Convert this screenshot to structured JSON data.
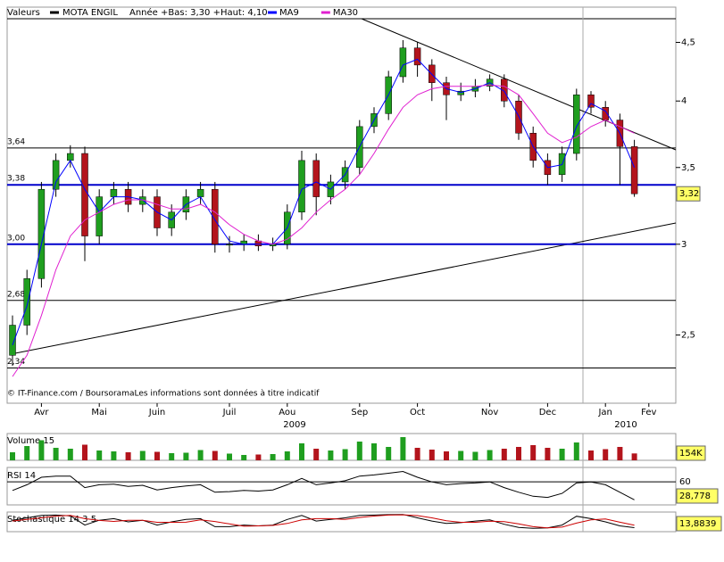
{
  "chart_data": {
    "type": "candlestick",
    "legend_title": "Valeurs",
    "instrument": "MOTA ENGIL",
    "instrument_color": "#000000",
    "range_note": "Année +Bas: 3,30 +Haut: 4,10",
    "source": "© IT-Finance.com / BoursoramaLes informations sont données à titre indicatif",
    "year_labels": [
      "2009",
      "2010"
    ],
    "log_scale": true,
    "up_color": "#1f9e1f",
    "down_color": "#b3141c",
    "categories": [
      null,
      null,
      "Avr",
      null,
      null,
      null,
      "Mai",
      null,
      null,
      null,
      "Juin",
      null,
      null,
      null,
      null,
      "Juil",
      null,
      null,
      null,
      "Aou",
      null,
      null,
      null,
      null,
      "Sep",
      null,
      null,
      null,
      "Oct",
      null,
      null,
      null,
      null,
      "Nov",
      null,
      null,
      null,
      "Dec",
      null,
      null,
      null,
      "Jan",
      null,
      null,
      "Fev"
    ],
    "open": [
      2.4,
      2.55,
      2.8,
      3.35,
      3.55,
      3.6,
      3.05,
      3.3,
      3.35,
      3.25,
      3.3,
      3.1,
      3.2,
      3.3,
      3.35,
      3.0,
      3.0,
      3.02,
      2.99,
      3.0,
      3.2,
      3.55,
      3.3,
      3.4,
      3.5,
      3.8,
      3.9,
      4.2,
      4.45,
      4.3,
      4.15,
      4.05,
      4.08,
      4.12,
      4.18,
      4.0,
      3.75,
      3.55,
      3.45,
      3.6,
      4.05,
      3.95,
      3.85,
      3.65,
      null
    ],
    "high": [
      2.6,
      2.85,
      3.4,
      3.6,
      3.66,
      3.65,
      3.35,
      3.4,
      3.4,
      3.35,
      3.35,
      3.25,
      3.35,
      3.4,
      3.4,
      3.05,
      3.06,
      3.06,
      3.04,
      3.25,
      3.62,
      3.6,
      3.45,
      3.55,
      3.85,
      3.95,
      4.25,
      4.52,
      4.5,
      4.35,
      4.2,
      4.15,
      4.18,
      4.22,
      4.22,
      4.05,
      3.8,
      3.6,
      3.65,
      4.1,
      4.08,
      4.0,
      3.9,
      3.7,
      null
    ],
    "low": [
      2.35,
      2.5,
      2.75,
      3.3,
      3.5,
      2.9,
      3.0,
      3.25,
      3.2,
      3.2,
      3.05,
      3.05,
      3.15,
      3.25,
      2.95,
      2.95,
      2.96,
      2.96,
      2.96,
      2.97,
      3.15,
      3.18,
      3.25,
      3.35,
      3.45,
      3.75,
      3.85,
      4.15,
      4.2,
      4.0,
      3.85,
      4.0,
      4.03,
      4.08,
      3.95,
      3.7,
      3.5,
      3.38,
      3.4,
      3.55,
      3.9,
      3.8,
      3.38,
      3.3,
      null
    ],
    "close": [
      2.55,
      2.8,
      3.35,
      3.55,
      3.6,
      3.05,
      3.3,
      3.35,
      3.25,
      3.3,
      3.1,
      3.2,
      3.3,
      3.35,
      3.0,
      3.0,
      3.02,
      2.99,
      3.0,
      3.2,
      3.55,
      3.3,
      3.4,
      3.5,
      3.8,
      3.9,
      4.2,
      4.45,
      4.3,
      4.15,
      4.05,
      4.08,
      4.12,
      4.18,
      4.0,
      3.75,
      3.55,
      3.45,
      3.6,
      4.05,
      3.95,
      3.85,
      3.65,
      3.32,
      null
    ],
    "series": [
      {
        "name": "MA9",
        "color": "#0000ff",
        "values": [
          2.45,
          2.65,
          3.0,
          3.4,
          3.55,
          3.35,
          3.2,
          3.3,
          3.3,
          3.28,
          3.2,
          3.15,
          3.25,
          3.3,
          3.15,
          3.02,
          3.0,
          3.0,
          3.0,
          3.1,
          3.35,
          3.4,
          3.35,
          3.45,
          3.65,
          3.85,
          4.05,
          4.3,
          4.35,
          4.22,
          4.1,
          4.07,
          4.1,
          4.15,
          4.08,
          3.88,
          3.65,
          3.5,
          3.52,
          3.8,
          3.98,
          3.92,
          3.75,
          3.5,
          null
        ]
      },
      {
        "name": "MA30",
        "color": "#e020d0",
        "values": [
          2.3,
          2.4,
          2.6,
          2.85,
          3.05,
          3.15,
          3.2,
          3.25,
          3.28,
          3.28,
          3.25,
          3.22,
          3.22,
          3.25,
          3.2,
          3.12,
          3.06,
          3.02,
          3.0,
          3.03,
          3.1,
          3.2,
          3.28,
          3.35,
          3.45,
          3.6,
          3.78,
          3.95,
          4.05,
          4.1,
          4.12,
          4.12,
          4.12,
          4.13,
          4.12,
          4.05,
          3.9,
          3.75,
          3.68,
          3.72,
          3.8,
          3.85,
          3.8,
          3.75,
          null
        ]
      }
    ],
    "ylim": [
      2.18,
      4.83
    ],
    "yticks": [
      {
        "value": 2.5,
        "label": "2,5"
      },
      3,
      {
        "value": 3.5,
        "label": "3,5"
      },
      4,
      {
        "value": 4.5,
        "label": "4,5"
      }
    ],
    "levels": [
      {
        "value": 3.64,
        "label": "3,64",
        "color": "#000000"
      },
      {
        "value": 3.38,
        "label": "3,38",
        "color": "#0000cc"
      },
      {
        "value": 3.0,
        "label": "3,00",
        "color": "#0000cc"
      },
      {
        "value": 2.68,
        "label": "2,68",
        "color": "#000000"
      },
      {
        "value": 2.34,
        "label": "2,34",
        "color": "#000000"
      }
    ],
    "last_price": {
      "value": 3.32,
      "label": "3,32"
    },
    "volume": {
      "title": "Volume 15",
      "ylim": [
        0,
        600000
      ],
      "values": [
        180000,
        320000,
        450000,
        280000,
        260000,
        350000,
        220000,
        200000,
        180000,
        210000,
        190000,
        160000,
        170000,
        230000,
        210000,
        150000,
        120000,
        130000,
        140000,
        200000,
        380000,
        260000,
        220000,
        250000,
        420000,
        380000,
        300000,
        520000,
        280000,
        240000,
        200000,
        210000,
        190000,
        230000,
        260000,
        300000,
        340000,
        280000,
        260000,
        400000,
        220000,
        250000,
        300000,
        154000,
        null
      ],
      "last": {
        "value": 154000,
        "label": "154K"
      }
    },
    "rsi": {
      "title": "RSI 14",
      "ylim": [
        20,
        85
      ],
      "yticks": [
        60
      ],
      "values": [
        45,
        55,
        68,
        70,
        70,
        50,
        55,
        56,
        52,
        54,
        46,
        50,
        53,
        55,
        42,
        43,
        45,
        44,
        46,
        55,
        66,
        55,
        58,
        62,
        70,
        72,
        75,
        78,
        68,
        60,
        55,
        57,
        58,
        60,
        50,
        42,
        35,
        33,
        40,
        58,
        60,
        55,
        42,
        28.778,
        null
      ],
      "last": {
        "value": 28.778,
        "label": "28,778"
      }
    },
    "stochastic": {
      "title": "Stochastique 14 3 5",
      "ylim": [
        0,
        100
      ],
      "series": [
        {
          "color": "#000000",
          "values": [
            60,
            75,
            90,
            92,
            88,
            30,
            60,
            70,
            50,
            60,
            30,
            50,
            65,
            70,
            20,
            20,
            30,
            25,
            30,
            65,
            90,
            55,
            65,
            75,
            90,
            92,
            95,
            96,
            75,
            55,
            40,
            45,
            55,
            62,
            35,
            15,
            10,
            12,
            30,
            85,
            70,
            50,
            25,
            13.8839,
            null
          ]
        },
        {
          "color": "#cc0000",
          "values": [
            55,
            65,
            75,
            86,
            90,
            70,
            59,
            53,
            60,
            60,
            47,
            47,
            48,
            62,
            52,
            37,
            23,
            25,
            28,
            40,
            62,
            70,
            70,
            65,
            77,
            86,
            92,
            94,
            89,
            75,
            57,
            47,
            47,
            54,
            51,
            37,
            20,
            12,
            17,
            42,
            62,
            68,
            48,
            29,
            null
          ]
        }
      ],
      "last": {
        "value": 13.8839,
        "label": "13,8839"
      }
    }
  }
}
